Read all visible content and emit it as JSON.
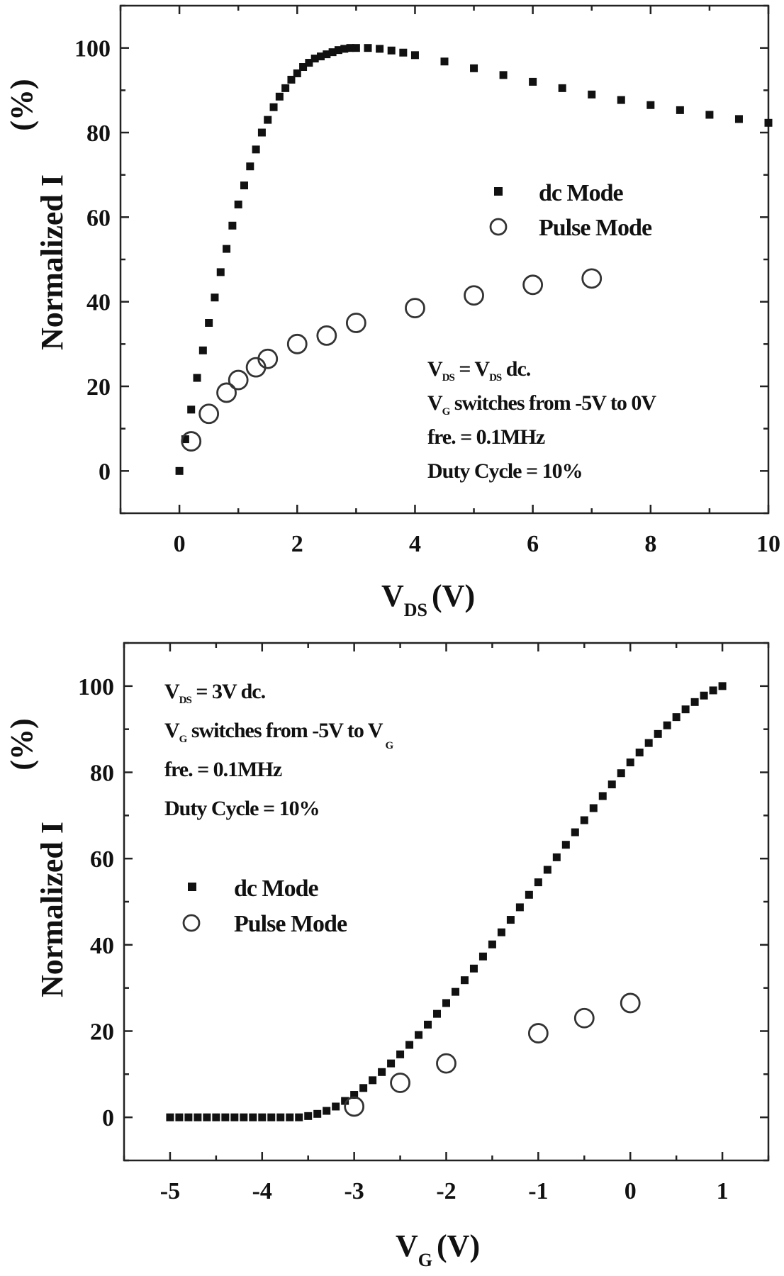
{
  "chart_data": [
    {
      "type": "scatter",
      "title": "",
      "xlabel": "V",
      "xlabel_sub": "DS",
      "xlabel_unit": "(V)",
      "ylabel": "Normalized I",
      "ylabel_unit": "(%)",
      "xlim": [
        -1,
        10
      ],
      "ylim": [
        -10,
        110
      ],
      "xticks": [
        0,
        2,
        4,
        6,
        8,
        10
      ],
      "yticks": [
        0,
        20,
        40,
        60,
        80,
        100
      ],
      "grid": false,
      "legend_position": "right-middle",
      "series": [
        {
          "name": "dc Mode",
          "marker": "filled-square",
          "x": [
            0,
            0.1,
            0.2,
            0.3,
            0.4,
            0.5,
            0.6,
            0.7,
            0.8,
            0.9,
            1.0,
            1.1,
            1.2,
            1.3,
            1.4,
            1.5,
            1.6,
            1.7,
            1.8,
            1.9,
            2.0,
            2.1,
            2.2,
            2.3,
            2.4,
            2.5,
            2.6,
            2.7,
            2.8,
            2.9,
            3.0,
            3.2,
            3.4,
            3.6,
            3.8,
            4.0,
            4.5,
            5.0,
            5.5,
            6.0,
            6.5,
            7.0,
            7.5,
            8.0,
            8.5,
            9.0,
            9.5,
            10.0
          ],
          "values": [
            0,
            7.5,
            14.5,
            22,
            28.5,
            35,
            41,
            47,
            52.5,
            58,
            63,
            67.5,
            72,
            76,
            80,
            83,
            86,
            88.5,
            90.5,
            92.5,
            94,
            95.5,
            96.5,
            97.5,
            98,
            98.5,
            99,
            99.5,
            99.8,
            100,
            100,
            100,
            99.8,
            99.4,
            98.9,
            98.3,
            96.8,
            95.2,
            93.6,
            92.0,
            90.5,
            89.0,
            87.7,
            86.5,
            85.3,
            84.2,
            83.2,
            82.3
          ]
        },
        {
          "name": "Pulse Mode",
          "marker": "open-circle",
          "x": [
            0.2,
            0.5,
            0.8,
            1.0,
            1.3,
            1.5,
            2.0,
            2.5,
            3.0,
            4.0,
            5.0,
            6.0,
            7.0
          ],
          "values": [
            7,
            13.5,
            18.5,
            21.5,
            24.5,
            26.5,
            30,
            32,
            35,
            38.5,
            41.5,
            44,
            45.5
          ]
        }
      ],
      "annotations": [
        {
          "text": "V",
          "sub": "DS",
          "rest": " = V",
          "sub2": "DS",
          "rest2": " dc."
        },
        {
          "text": "V",
          "sub": "G",
          "rest": " switches from -5V to 0V"
        },
        {
          "text": "fre. = 0.1MHz"
        },
        {
          "text": "Duty Cycle = 10%"
        }
      ]
    },
    {
      "type": "scatter",
      "title": "",
      "xlabel": "V",
      "xlabel_sub": "G",
      "xlabel_unit": "(V)",
      "ylabel": "Normalized I",
      "ylabel_unit": "(%)",
      "xlim": [
        -5.5,
        1.5
      ],
      "ylim": [
        -10,
        110
      ],
      "xticks": [
        -5,
        -4,
        -3,
        -2,
        -1,
        0,
        1
      ],
      "yticks": [
        0,
        20,
        40,
        60,
        80,
        100
      ],
      "grid": false,
      "legend_position": "left-middle",
      "series": [
        {
          "name": "dc Mode",
          "marker": "filled-square",
          "x": [
            -5.0,
            -4.9,
            -4.8,
            -4.7,
            -4.6,
            -4.5,
            -4.4,
            -4.3,
            -4.2,
            -4.1,
            -4.0,
            -3.9,
            -3.8,
            -3.7,
            -3.6,
            -3.5,
            -3.4,
            -3.3,
            -3.2,
            -3.1,
            -3.0,
            -2.9,
            -2.8,
            -2.7,
            -2.6,
            -2.5,
            -2.4,
            -2.3,
            -2.2,
            -2.1,
            -2.0,
            -1.9,
            -1.8,
            -1.7,
            -1.6,
            -1.5,
            -1.4,
            -1.3,
            -1.2,
            -1.1,
            -1.0,
            -0.9,
            -0.8,
            -0.7,
            -0.6,
            -0.5,
            -0.4,
            -0.3,
            -0.2,
            -0.1,
            0.0,
            0.1,
            0.2,
            0.3,
            0.4,
            0.5,
            0.6,
            0.7,
            0.8,
            0.9,
            1.0
          ],
          "values": [
            0,
            0,
            0,
            0,
            0,
            0,
            0,
            0,
            0,
            0,
            0,
            0,
            0,
            0,
            0,
            0.3,
            0.8,
            1.5,
            2.5,
            3.8,
            5.2,
            6.8,
            8.6,
            10.5,
            12.5,
            14.6,
            16.8,
            19.1,
            21.5,
            24,
            26.5,
            29.1,
            31.8,
            34.5,
            37.3,
            40.1,
            42.9,
            45.8,
            48.7,
            51.6,
            54.5,
            57.4,
            60.3,
            63.2,
            66.1,
            68.9,
            71.7,
            74.5,
            77.2,
            79.8,
            82.3,
            84.6,
            86.8,
            88.9,
            90.9,
            92.8,
            94.6,
            96.3,
            97.8,
            99.0,
            100
          ]
        },
        {
          "name": "Pulse Mode",
          "marker": "open-circle",
          "x": [
            -3.0,
            -2.5,
            -2.0,
            -1.0,
            -0.5,
            0.0
          ],
          "values": [
            2.5,
            8,
            12.5,
            19.5,
            23,
            26.5
          ]
        }
      ],
      "annotations": [
        {
          "text": "V",
          "sub": "DS",
          "rest": " = 3V dc."
        },
        {
          "text": "V",
          "sub": "G",
          "rest": " switches from -5V to V",
          "sub2": "G"
        },
        {
          "text": "fre. = 0.1MHz"
        },
        {
          "text": "Duty Cycle = 10%"
        }
      ]
    }
  ]
}
